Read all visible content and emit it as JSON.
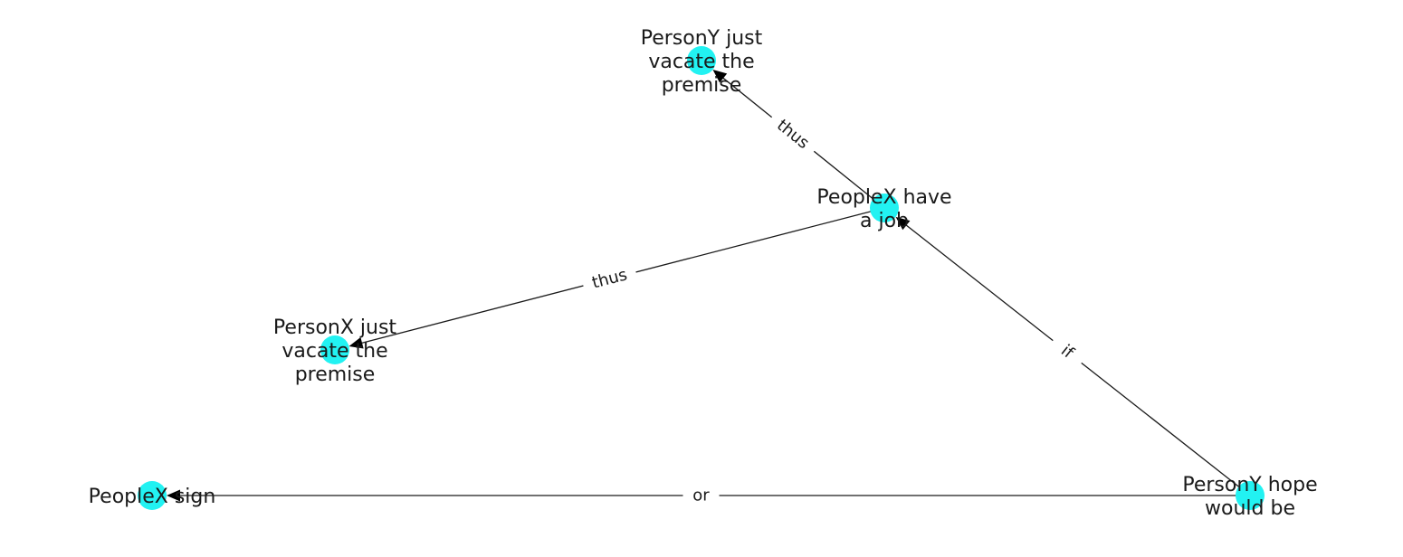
{
  "graph": {
    "node_color": "#22f2f2",
    "nodes": [
      {
        "id": "peoplex_have_a_job",
        "lines": [
          "PeopleX have",
          "a job"
        ]
      },
      {
        "id": "persony_vacate",
        "lines": [
          "PersonY just",
          "vacate the",
          "premise"
        ]
      },
      {
        "id": "personx_vacate",
        "lines": [
          "PersonX just",
          "vacate the",
          "premise"
        ]
      },
      {
        "id": "peoplex_sign",
        "lines": [
          "PeopleX sign"
        ]
      },
      {
        "id": "persony_hope",
        "lines": [
          "PersonY hope",
          "would be"
        ]
      }
    ],
    "edges": [
      {
        "source": "peoplex_have_a_job",
        "target": "persony_vacate",
        "label": "thus"
      },
      {
        "source": "peoplex_have_a_job",
        "target": "personx_vacate",
        "label": "thus"
      },
      {
        "source": "persony_hope",
        "target": "peoplex_have_a_job",
        "label": "if"
      },
      {
        "source": "persony_hope",
        "target": "peoplex_sign",
        "label": "or"
      }
    ]
  }
}
